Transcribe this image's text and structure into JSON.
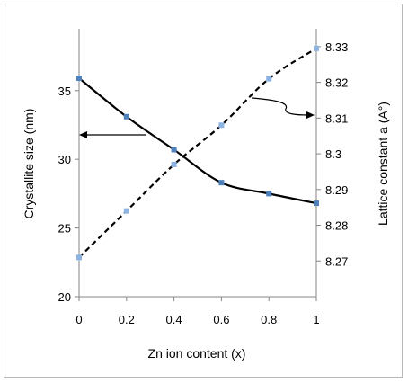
{
  "chart_data": {
    "type": "line",
    "title": "",
    "xlabel": "Zn ion content (x)",
    "ylabel_left": "Crystallite size (nm)",
    "ylabel_right": "Lattice constant a (A°)",
    "x_ticks": [
      "0",
      "0.2",
      "0.4",
      "0.6",
      "0.8",
      "1"
    ],
    "y_left_ticks": [
      "20",
      "25",
      "30",
      "35"
    ],
    "y_right_ticks": [
      "8.27",
      "8.28",
      "8.29",
      "8.3",
      "8.31",
      "8.32",
      "8.33"
    ],
    "xlim": [
      0,
      1
    ],
    "ylim_left": [
      20,
      39.5
    ],
    "ylim_right": [
      8.26,
      8.335
    ],
    "grid": false,
    "legend": "none",
    "series": [
      {
        "axis": "left",
        "style": "solid",
        "color": "#000000",
        "marker_color": "#4f81bd",
        "x": [
          0,
          0.2,
          0.4,
          0.6,
          0.8,
          1
        ],
        "y": [
          35.9,
          33.1,
          30.7,
          28.3,
          27.5,
          26.8
        ]
      },
      {
        "axis": "right",
        "style": "dashed",
        "color": "#000000",
        "marker_color": "#8db3e2",
        "x": [
          0,
          0.2,
          0.4,
          0.6,
          0.8,
          1
        ],
        "y": [
          8.271,
          8.284,
          8.297,
          8.308,
          8.321,
          8.3295
        ]
      }
    ]
  }
}
